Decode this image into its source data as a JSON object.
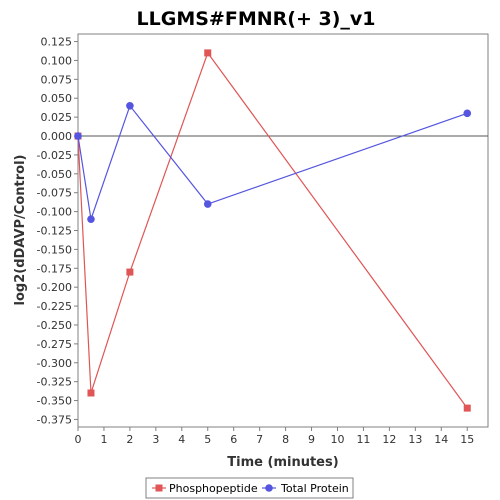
{
  "chart_data": {
    "type": "line",
    "title": "LLGMS#FMNR(+ 3)_v1",
    "xlabel": "Time (minutes)",
    "ylabel": "log2(dDAVP/Control)",
    "xlim": [
      0,
      15.8
    ],
    "ylim": [
      -0.385,
      0.135
    ],
    "x_ticks": [
      0,
      1,
      2,
      3,
      4,
      5,
      6,
      7,
      8,
      9,
      10,
      11,
      12,
      13,
      14,
      15
    ],
    "y_ticks": [
      0.125,
      0.1,
      0.075,
      0.05,
      0.025,
      0.0,
      -0.025,
      -0.05,
      -0.075,
      -0.1,
      -0.125,
      -0.15,
      -0.175,
      -0.2,
      -0.225,
      -0.25,
      -0.275,
      -0.3,
      -0.325,
      -0.35,
      -0.375
    ],
    "y_tick_labels": [
      "0.125",
      "0.100",
      "0.075",
      "0.050",
      "0.025",
      "0.000",
      "-0.025",
      "-0.050",
      "-0.075",
      "-0.100",
      "-0.125",
      "-0.150",
      "-0.175",
      "-0.200",
      "-0.225",
      "-0.250",
      "-0.275",
      "-0.300",
      "-0.325",
      "-0.350",
      "-0.375"
    ],
    "zero_line": true,
    "grid": false,
    "legend_position": "bottom",
    "series": [
      {
        "name": "Phosphopeptide",
        "color": "#e05555",
        "marker": "square",
        "x": [
          0,
          0.5,
          2,
          5,
          15
        ],
        "y": [
          0.0,
          -0.34,
          -0.18,
          0.11,
          -0.36
        ]
      },
      {
        "name": "Total Protein",
        "color": "#5555e0",
        "marker": "circle",
        "x": [
          0,
          0.5,
          2,
          5,
          15
        ],
        "y": [
          0.0,
          -0.11,
          0.04,
          -0.09,
          0.03
        ]
      }
    ]
  }
}
